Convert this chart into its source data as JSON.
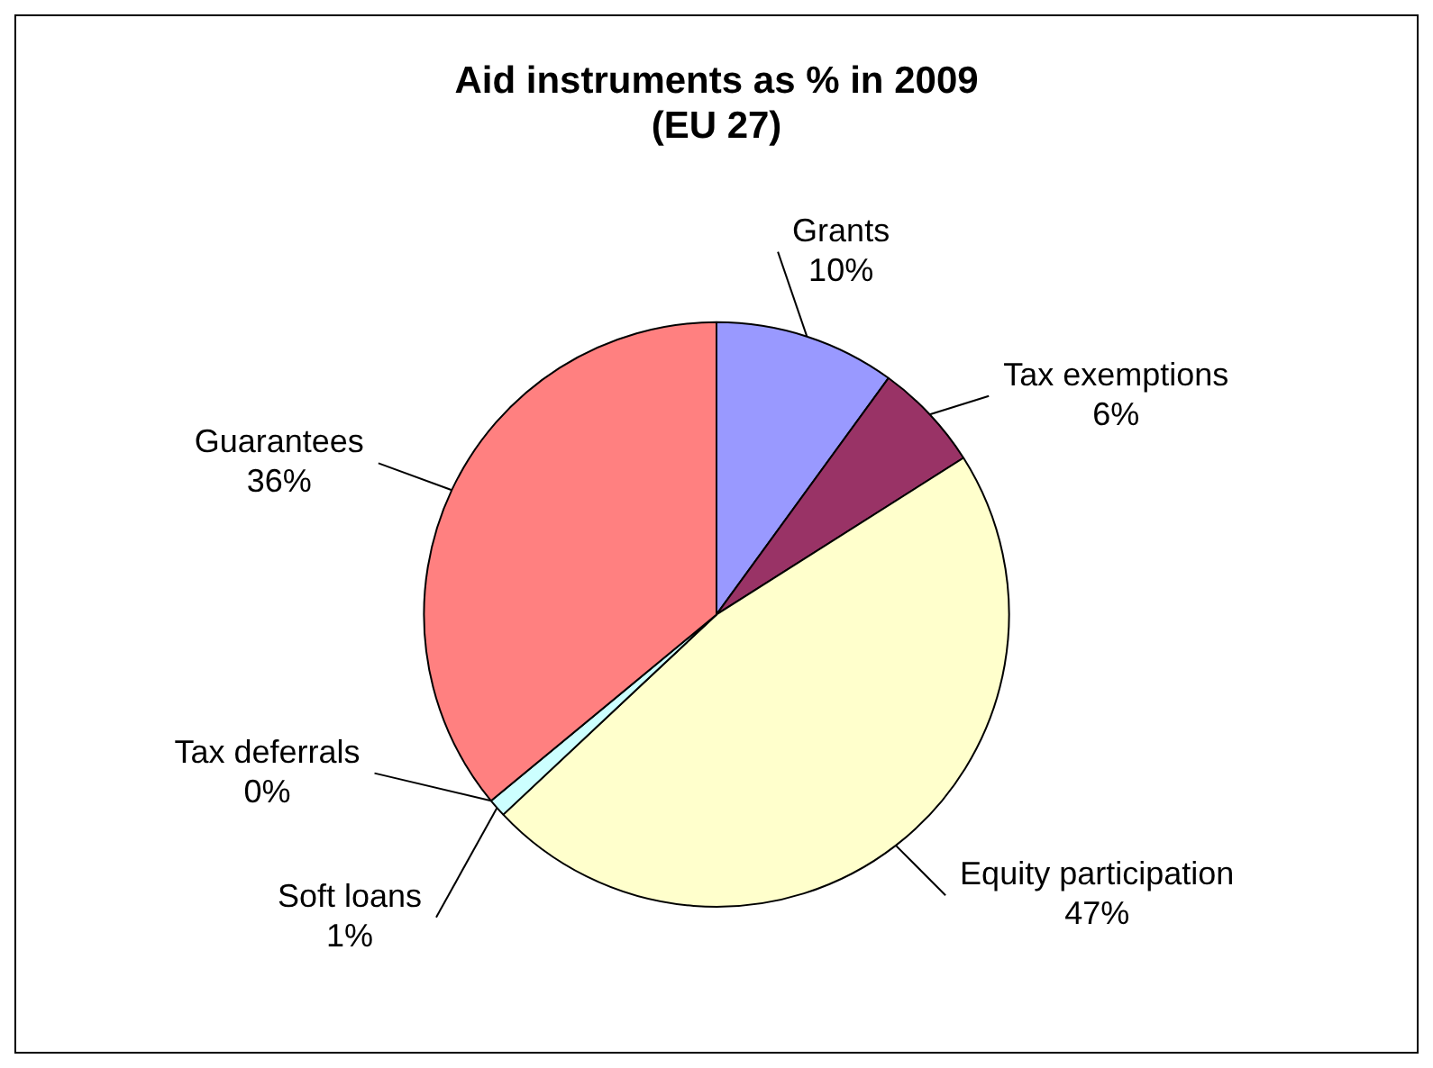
{
  "chart_data": {
    "type": "pie",
    "title": "Aid instruments as % in 2009\n(EU 27)",
    "categories": [
      "Grants",
      "Tax exemptions",
      "Equity participation",
      "Soft loans",
      "Tax deferrals",
      "Guarantees"
    ],
    "values": [
      10,
      6,
      47,
      1,
      0,
      36
    ],
    "value_labels": [
      "10%",
      "6%",
      "47%",
      "1%",
      "0%",
      "36%"
    ],
    "colors": [
      "#9999ff",
      "#993366",
      "#ffffcc",
      "#ccffff",
      "#660066",
      "#ff8080"
    ],
    "legend": false
  }
}
